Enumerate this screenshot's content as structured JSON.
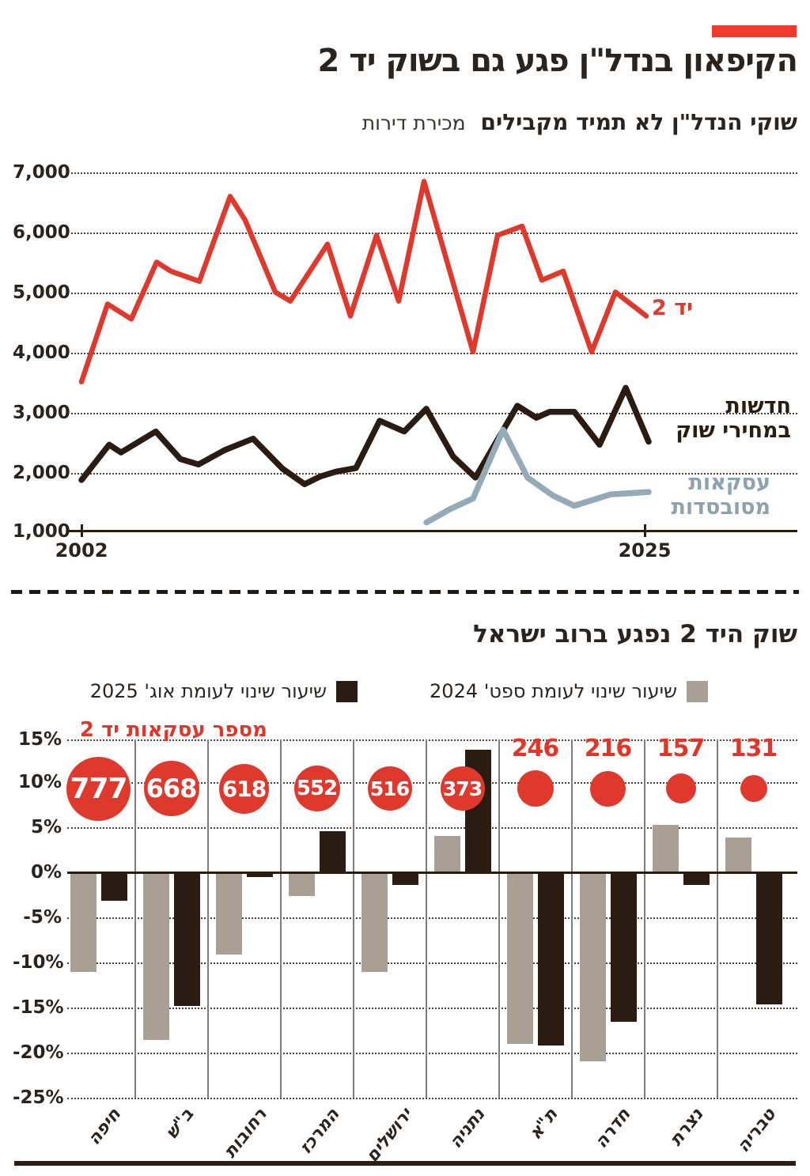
{
  "page": {
    "title": "הקיפאון בנדל\"ן פגע גם בשוק יד 2",
    "subtitle_bold": "שוקי הנדל\"ן לא תמיד מקבילים",
    "subtitle_light": "מכירת דירות",
    "accent_color": "#df382d",
    "dark_color": "#2a1c10",
    "gray_color": "#a9a093",
    "blue_color": "#94aab6"
  },
  "chart_data": [
    {
      "type": "line",
      "subtitle": "שוקי הנדל\"ן לא תמיד מקבילים מכירת דירות",
      "ylim": [
        1000,
        7000
      ],
      "yticks": [
        "7,000",
        "6,000",
        "5,000",
        "4,000",
        "3,000",
        "2,000",
        "1,000"
      ],
      "xticks": [
        "2002",
        "2025"
      ],
      "grid": "horizontal-dotted",
      "legend_position": "end-of-line",
      "series": [
        {
          "name": "יד 2",
          "color": "#df382d",
          "points": [
            [
              103,
              3500
            ],
            [
              136,
              4800
            ],
            [
              166,
              4550
            ],
            [
              198,
              5500
            ],
            [
              216,
              5350
            ],
            [
              252,
              5180
            ],
            [
              291,
              6600
            ],
            [
              310,
              6200
            ],
            [
              348,
              5000
            ],
            [
              367,
              4850
            ],
            [
              414,
              5800
            ],
            [
              443,
              4600
            ],
            [
              476,
              5950
            ],
            [
              504,
              4850
            ],
            [
              536,
              6850
            ],
            [
              598,
              4000
            ],
            [
              629,
              5950
            ],
            [
              660,
              6100
            ],
            [
              685,
              5200
            ],
            [
              712,
              5350
            ],
            [
              748,
              4000
            ],
            [
              778,
              5000
            ],
            [
              817,
              4600
            ]
          ]
        },
        {
          "name": "חדשות\nבמחירי שוק",
          "color": "#2a1c10",
          "points": [
            [
              103,
              1860
            ],
            [
              138,
              2450
            ],
            [
              153,
              2320
            ],
            [
              197,
              2670
            ],
            [
              228,
              2210
            ],
            [
              251,
              2120
            ],
            [
              284,
              2360
            ],
            [
              320,
              2550
            ],
            [
              357,
              2050
            ],
            [
              385,
              1790
            ],
            [
              405,
              1920
            ],
            [
              425,
              2000
            ],
            [
              450,
              2060
            ],
            [
              480,
              2850
            ],
            [
              511,
              2670
            ],
            [
              539,
              3050
            ],
            [
              573,
              2250
            ],
            [
              601,
              1900
            ],
            [
              654,
              3100
            ],
            [
              678,
              2900
            ],
            [
              695,
              3000
            ],
            [
              726,
              3000
            ],
            [
              758,
              2450
            ],
            [
              791,
              3400
            ],
            [
              820,
              2500
            ]
          ]
        },
        {
          "name": "עסקאות\nמסובסדות",
          "color": "#94aab6",
          "points": [
            [
              539,
              1150
            ],
            [
              570,
              1380
            ],
            [
              598,
              1550
            ],
            [
              636,
              2700
            ],
            [
              667,
              1900
            ],
            [
              699,
              1600
            ],
            [
              726,
              1430
            ],
            [
              772,
              1620
            ],
            [
              820,
              1660
            ]
          ]
        }
      ]
    },
    {
      "type": "bar",
      "title": "שוק היד 2 נפגע ברוב ישראל",
      "bubble_label": "מספר עסקאות יד 2",
      "ylim": [
        -25,
        15
      ],
      "yticks": [
        "15%",
        "10%",
        "5%",
        "0%",
        "-5%",
        "-10%",
        "-15%",
        "-20%",
        "-25%"
      ],
      "categories": [
        "חיפה",
        "ב\"ש",
        "רחובות",
        "המרכז",
        "ירושלים",
        "נתניה",
        "ת\"א",
        "חדרה",
        "נצרת",
        "טבריה"
      ],
      "series": [
        {
          "name": "שיעור שינוי לעומת ספט' 2024",
          "color": "#a9a093",
          "values": [
            -11,
            -18.6,
            -9.1,
            -2.6,
            -11,
            4.1,
            -19.1,
            -21,
            5.3,
            3.9
          ]
        },
        {
          "name": "שיעור שינוי לעומת אוג' 2025",
          "color": "#2a1c10",
          "values": [
            -3.1,
            -14.8,
            -0.4,
            4.6,
            -1.3,
            13.7,
            -19.3,
            -16.6,
            -1.3,
            -14.7
          ]
        }
      ],
      "deals": {
        "values": [
          777,
          668,
          618,
          552,
          516,
          373,
          246,
          216,
          157,
          131
        ],
        "sizes": [
          81,
          70,
          63,
          58,
          56,
          56,
          46,
          45,
          38,
          34
        ],
        "label_inside": [
          true,
          true,
          true,
          true,
          true,
          true,
          false,
          false,
          false,
          false
        ]
      }
    }
  ]
}
